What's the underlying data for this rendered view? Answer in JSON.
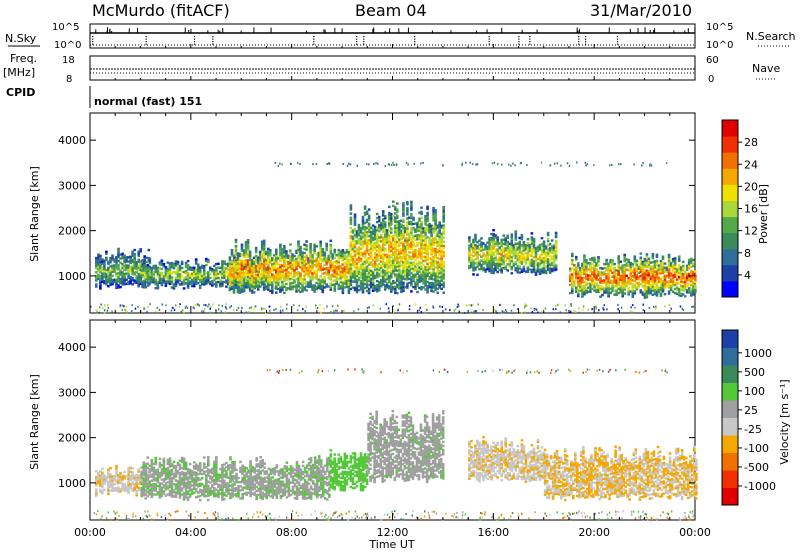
{
  "header": {
    "station": "McMurdo (fitACF)",
    "beam": "Beam 04",
    "date": "31/Mar/2010"
  },
  "params": {
    "nsky_label": "N.Sky",
    "nsearch_label": "N.Search",
    "freq_label": "Freq.",
    "freq_unit": "[MHz]",
    "nave_label": "Nave",
    "cpid_label": "CPID",
    "cpid_value": "normal (fast) 151",
    "top_left_ticks": [
      "10^5",
      "10^0"
    ],
    "top_right_ticks": [
      "10^5",
      "10^0"
    ],
    "freq_ticks": [
      "18",
      "8"
    ],
    "nave_ticks": [
      "60",
      "0"
    ]
  },
  "colors": {
    "power": [
      "#0000ff",
      "#1f3fa8",
      "#2e6e9a",
      "#3a8a5a",
      "#55a84a",
      "#a8d83a",
      "#f0e000",
      "#f5a800",
      "#f07000",
      "#f03000",
      "#e00000"
    ],
    "velocity": [
      "#e00000",
      "#f03000",
      "#f07000",
      "#f5a800",
      "#c8c8c8",
      "#a0a0a0",
      "#55c83a",
      "#3a8a5a",
      "#2e6e9a",
      "#1f3fa8"
    ]
  },
  "chart_data": [
    {
      "type": "heatmap",
      "name": "power",
      "ylabel": "Slant Range [km]",
      "yticks": [
        1000,
        2000,
        3000,
        4000
      ],
      "ylim": [
        180,
        4600
      ],
      "xlim": [
        0,
        24
      ],
      "colorbar": {
        "label": "Power [dB]",
        "ticks": [
          4,
          8,
          12,
          16,
          20,
          24,
          28
        ],
        "range": [
          0,
          32
        ]
      },
      "echo_regions": [
        {
          "t0": 0.2,
          "t1": 2.3,
          "r0": 700,
          "r1": 1600,
          "v": 12
        },
        {
          "t0": 2.0,
          "t1": 7.0,
          "r0": 700,
          "r1": 1400,
          "v": 14
        },
        {
          "t0": 5.5,
          "t1": 10.3,
          "r0": 600,
          "r1": 1800,
          "v": 20
        },
        {
          "t0": 10.3,
          "t1": 14.0,
          "r0": 600,
          "r1": 2700,
          "v": 18
        },
        {
          "t0": 15.0,
          "t1": 18.5,
          "r0": 1000,
          "r1": 2000,
          "v": 16
        },
        {
          "t0": 19.0,
          "t1": 24.0,
          "r0": 500,
          "r1": 1500,
          "v": 22
        }
      ]
    },
    {
      "type": "heatmap",
      "name": "velocity",
      "ylabel": "Slant Range [km]",
      "xlabel": "Time UT",
      "xticks": [
        "00:00",
        "04:00",
        "08:00",
        "12:00",
        "16:00",
        "20:00",
        "00:00"
      ],
      "yticks": [
        1000,
        2000,
        3000,
        4000
      ],
      "ylim": [
        180,
        4600
      ],
      "xlim": [
        0,
        24
      ],
      "colorbar": {
        "label": "Velocity [m s⁻¹]",
        "ticks": [
          "-1000",
          "-500",
          "-100",
          "-25",
          "25",
          "100",
          "500",
          "1000"
        ],
        "range": [
          -1000,
          1000
        ]
      },
      "echo_regions": [
        {
          "t0": 0.2,
          "t1": 2.3,
          "r0": 700,
          "r1": 1400,
          "v": -150
        },
        {
          "t0": 2.0,
          "t1": 9.5,
          "r0": 600,
          "r1": 1600,
          "v": 150
        },
        {
          "t0": 9.5,
          "t1": 11.0,
          "r0": 800,
          "r1": 1800,
          "v": 300
        },
        {
          "t0": 11.0,
          "t1": 14.0,
          "r0": 1000,
          "r1": 2600,
          "v": 120
        },
        {
          "t0": 15.0,
          "t1": 18.0,
          "r0": 1000,
          "r1": 2000,
          "v": -150
        },
        {
          "t0": 18.0,
          "t1": 24.0,
          "r0": 600,
          "r1": 1800,
          "v": -200
        }
      ]
    }
  ]
}
